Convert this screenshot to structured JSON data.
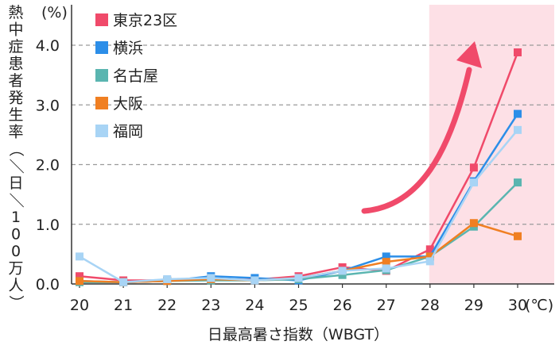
{
  "chart_data": {
    "type": "line",
    "title": "",
    "xlabel": "日最高暑さ指数（WBGT）",
    "ylabel": "熱中症患者発生率（／日／100万人）",
    "ylabel_unit": "(%)",
    "x_unit": "(℃)",
    "categories": [
      "20",
      "21",
      "22",
      "23",
      "24",
      "25",
      "26",
      "27",
      "28",
      "29",
      "30"
    ],
    "x_tick_labels": [
      "20",
      "21",
      "22",
      "23",
      "24",
      "25",
      "26",
      "27",
      "28",
      "29",
      "30"
    ],
    "ylim": [
      0,
      4.2
    ],
    "y_ticks": [
      0.0,
      1.0,
      2.0,
      3.0,
      4.0
    ],
    "y_tick_labels": [
      "0.0",
      "1.0",
      "2.0",
      "3.0",
      "4.0"
    ],
    "grid": "horizontal dashed",
    "legend_placement": "top-left",
    "highlight_region": {
      "from": "28",
      "to": "30",
      "color": "#fde0e6"
    },
    "trend_arrow_color": "#f04a6a",
    "series": [
      {
        "name": "東京23区",
        "color": "#f04a6a",
        "values": [
          0.13,
          0.06,
          0.06,
          0.08,
          0.07,
          0.13,
          0.28,
          0.22,
          0.58,
          1.95,
          3.88
        ]
      },
      {
        "name": "横浜",
        "color": "#2c8ee8",
        "values": [
          0.05,
          0.03,
          0.05,
          0.13,
          0.1,
          0.06,
          0.22,
          0.46,
          0.46,
          1.72,
          2.85
        ]
      },
      {
        "name": "名古屋",
        "color": "#5ab5b0",
        "values": [
          0.03,
          0.03,
          0.05,
          0.06,
          0.06,
          0.08,
          0.15,
          0.23,
          0.46,
          0.96,
          1.7
        ]
      },
      {
        "name": "大阪",
        "color": "#f07f22",
        "values": [
          0.05,
          0.03,
          0.05,
          0.08,
          0.06,
          0.1,
          0.22,
          0.37,
          0.46,
          1.02,
          0.8
        ]
      },
      {
        "name": "福岡",
        "color": "#a8d4f5",
        "values": [
          0.46,
          0.03,
          0.08,
          0.1,
          0.06,
          0.1,
          0.22,
          0.26,
          0.38,
          1.7,
          2.58
        ]
      }
    ]
  }
}
